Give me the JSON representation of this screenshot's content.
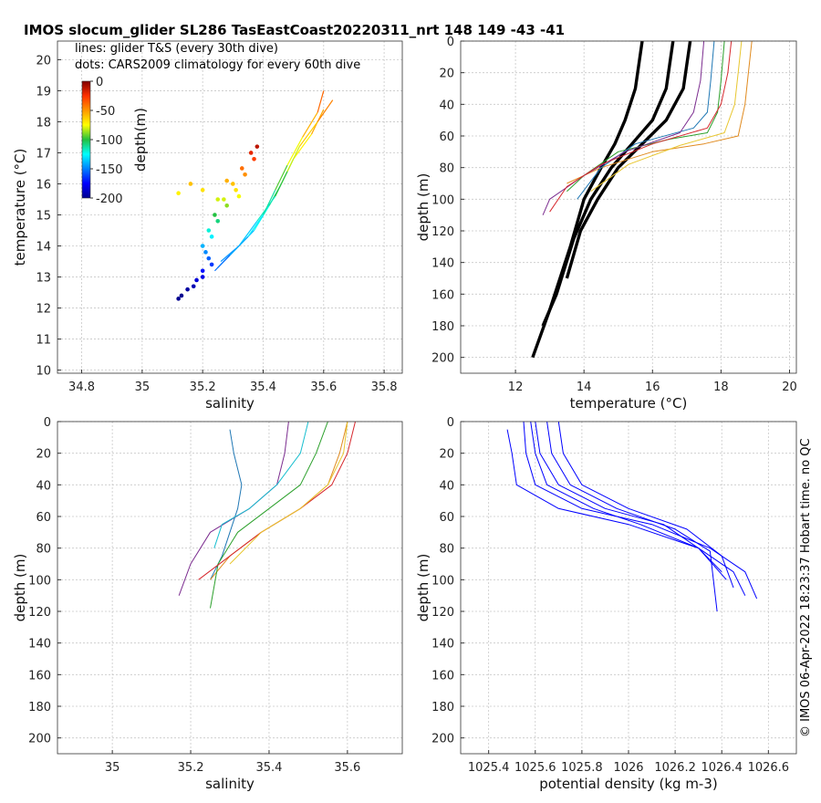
{
  "title": "IMOS slocum_glider SL286 TasEastCoast20220311_nrt 148  149  -43  -41",
  "copyright": "© IMOS 06-Apr-2022 18:23:37 Hobart time. no QC",
  "colors": {
    "glider_density": "#0000ff",
    "climatology_profile": "#000000",
    "grid": "#c8c8c8"
  },
  "chart_data": [
    {
      "id": "ts_diagram",
      "type": "scatter",
      "xlabel": "salinity",
      "ylabel": "temperature (°C)",
      "xlim": [
        34.72,
        35.86
      ],
      "ylim": [
        9.9,
        20.6
      ],
      "xticks": [
        34.8,
        35,
        35.2,
        35.4,
        35.6,
        35.8
      ],
      "xtick_labels": [
        "34.8",
        "35",
        "35.2",
        "35.4",
        "35.6",
        "35.8"
      ],
      "yticks": [
        10,
        11,
        12,
        13,
        14,
        15,
        16,
        17,
        18,
        19,
        20
      ],
      "ytick_labels": [
        "10",
        "11",
        "12",
        "13",
        "14",
        "15",
        "16",
        "17",
        "18",
        "19",
        "20"
      ],
      "grid": true,
      "annotations": [
        "lines: glider T&S (every 30th dive)",
        "dots: CARS2009 climatology for every 60th dive"
      ],
      "colorbar": {
        "label": "depth(m)",
        "ticks": [
          0,
          -50,
          -100,
          -150,
          -200
        ],
        "tick_labels": [
          "0",
          "-50",
          "-100",
          "-150",
          "-200"
        ],
        "range": [
          -200,
          0
        ],
        "colormap": "jet"
      },
      "series": [
        {
          "kind": "glider_ts_lines",
          "points": [
            [
              35.25,
              13.3
            ],
            [
              35.3,
              13.8
            ],
            [
              35.37,
              14.5
            ],
            [
              35.42,
              15.3
            ],
            [
              35.46,
              16.0
            ],
            [
              35.5,
              16.8
            ],
            [
              35.56,
              17.6
            ],
            [
              35.6,
              18.4
            ]
          ]
        },
        {
          "kind": "glider_ts_lines",
          "points": [
            [
              35.26,
              13.5
            ],
            [
              35.32,
              14.0
            ],
            [
              35.38,
              14.8
            ],
            [
              35.44,
              15.6
            ],
            [
              35.48,
              16.4
            ],
            [
              35.52,
              17.2
            ],
            [
              35.58,
              18.0
            ],
            [
              35.63,
              18.7
            ]
          ]
        },
        {
          "kind": "glider_ts_lines",
          "points": [
            [
              35.24,
              13.2
            ],
            [
              35.29,
              13.7
            ],
            [
              35.35,
              14.3
            ],
            [
              35.4,
              15.0
            ],
            [
              35.44,
              15.8
            ],
            [
              35.48,
              16.6
            ],
            [
              35.53,
              17.5
            ],
            [
              35.58,
              18.3
            ],
            [
              35.6,
              19.0
            ]
          ]
        },
        {
          "kind": "climatology_dots",
          "points": [
            [
              35.12,
              12.3
            ],
            [
              35.15,
              12.6
            ],
            [
              35.18,
              12.9
            ],
            [
              35.2,
              13.2
            ],
            [
              35.22,
              13.6
            ],
            [
              35.2,
              14.0
            ],
            [
              35.22,
              14.5
            ],
            [
              35.24,
              15.0
            ],
            [
              35.27,
              15.5
            ],
            [
              35.3,
              16.0
            ],
            [
              35.33,
              16.5
            ],
            [
              35.36,
              17.0
            ],
            [
              35.38,
              17.2
            ]
          ]
        },
        {
          "kind": "climatology_dots",
          "points": [
            [
              35.13,
              12.4
            ],
            [
              35.17,
              12.7
            ],
            [
              35.2,
              13.0
            ],
            [
              35.23,
              13.4
            ],
            [
              35.21,
              13.8
            ],
            [
              35.23,
              14.3
            ],
            [
              35.25,
              14.8
            ],
            [
              35.28,
              15.3
            ],
            [
              35.31,
              15.8
            ],
            [
              35.34,
              16.3
            ],
            [
              35.37,
              16.8
            ]
          ]
        },
        {
          "kind": "climatology_dots",
          "points": [
            [
              35.12,
              15.7
            ],
            [
              35.16,
              16.0
            ],
            [
              35.2,
              15.8
            ],
            [
              35.25,
              15.5
            ],
            [
              35.28,
              16.1
            ],
            [
              35.32,
              15.6
            ]
          ]
        }
      ]
    },
    {
      "id": "temperature_profile",
      "type": "line",
      "xlabel": "temperature (°C)",
      "ylabel": "depth (m)",
      "xlim": [
        10.4,
        20.2
      ],
      "ylim": [
        0,
        210
      ],
      "y_reversed": true,
      "xticks": [
        12,
        14,
        16,
        18,
        20
      ],
      "xtick_labels": [
        "12",
        "14",
        "16",
        "18",
        "20"
      ],
      "yticks": [
        0,
        20,
        40,
        60,
        80,
        100,
        120,
        140,
        160,
        180,
        200
      ],
      "ytick_labels": [
        "0",
        "20",
        "40",
        "60",
        "80",
        "100",
        "120",
        "140",
        "160",
        "180",
        "200"
      ],
      "grid": true,
      "series": [
        {
          "kind": "climatology",
          "color": "#000000",
          "x": [
            15.7,
            15.5,
            15.2,
            14.9,
            14.5,
            14.0,
            13.6,
            13.0,
            12.5
          ],
          "y": [
            0,
            30,
            50,
            65,
            80,
            100,
            130,
            170,
            200
          ]
        },
        {
          "kind": "climatology",
          "color": "#000000",
          "x": [
            16.6,
            16.4,
            16.0,
            15.4,
            14.8,
            14.2,
            13.7,
            13.2,
            12.8
          ],
          "y": [
            0,
            30,
            50,
            65,
            80,
            100,
            125,
            160,
            180
          ]
        },
        {
          "kind": "climatology",
          "color": "#000000",
          "x": [
            17.1,
            16.9,
            16.4,
            15.7,
            15.0,
            14.4,
            13.9,
            13.5
          ],
          "y": [
            0,
            30,
            50,
            65,
            80,
            100,
            120,
            150
          ]
        },
        {
          "kind": "glider",
          "color": "#e08a1e",
          "x": [
            18.9,
            18.8,
            18.7,
            18.5,
            17.5,
            16.0,
            14.5,
            13.5
          ],
          "y": [
            0,
            20,
            40,
            60,
            65,
            70,
            80,
            90
          ]
        },
        {
          "kind": "glider",
          "color": "#2ca02c",
          "x": [
            18.1,
            18.0,
            17.9,
            17.6,
            16.5,
            15.0,
            14.0,
            13.5
          ],
          "y": [
            0,
            25,
            45,
            58,
            62,
            70,
            85,
            95
          ]
        },
        {
          "kind": "glider",
          "color": "#1f77b4",
          "x": [
            17.8,
            17.7,
            17.6,
            17.2,
            15.5,
            14.5,
            13.8
          ],
          "y": [
            0,
            25,
            45,
            55,
            65,
            80,
            100
          ]
        },
        {
          "kind": "glider",
          "color": "#7b2c8f",
          "x": [
            17.5,
            17.4,
            17.2,
            16.8,
            15.2,
            14.0,
            13.0,
            12.8
          ],
          "y": [
            0,
            25,
            45,
            58,
            70,
            85,
            100,
            110
          ]
        },
        {
          "kind": "glider",
          "color": "#d6272d",
          "x": [
            18.3,
            18.2,
            18.0,
            17.6,
            16.0,
            14.5,
            13.5,
            13.0
          ],
          "y": [
            0,
            20,
            40,
            55,
            65,
            78,
            92,
            108
          ]
        },
        {
          "kind": "glider",
          "color": "#e8c62f",
          "x": [
            18.6,
            18.5,
            18.4,
            18.1,
            16.8,
            15.3,
            14.2
          ],
          "y": [
            0,
            20,
            40,
            58,
            66,
            78,
            95
          ]
        }
      ]
    },
    {
      "id": "salinity_profile",
      "type": "line",
      "xlabel": "salinity",
      "ylabel": "depth (m)",
      "xlim": [
        34.86,
        35.74
      ],
      "ylim": [
        0,
        210
      ],
      "y_reversed": true,
      "xticks": [
        35,
        35.2,
        35.4,
        35.6
      ],
      "xtick_labels": [
        "35",
        "35.2",
        "35.4",
        "35.6"
      ],
      "yticks": [
        0,
        20,
        40,
        60,
        80,
        100,
        120,
        140,
        160,
        180,
        200
      ],
      "ytick_labels": [
        "0",
        "20",
        "40",
        "60",
        "80",
        "100",
        "120",
        "140",
        "160",
        "180",
        "200"
      ],
      "grid": true,
      "series": [
        {
          "kind": "glider",
          "color": "#1f77b4",
          "x": [
            35.3,
            35.31,
            35.33,
            35.32,
            35.3,
            35.28,
            35.25
          ],
          "y": [
            5,
            20,
            40,
            55,
            70,
            85,
            100
          ]
        },
        {
          "kind": "glider",
          "color": "#e08a1e",
          "x": [
            35.6,
            35.58,
            35.55,
            35.48,
            35.38,
            35.3,
            35.25
          ],
          "y": [
            0,
            20,
            40,
            55,
            70,
            85,
            100
          ]
        },
        {
          "kind": "glider",
          "color": "#2ca02c",
          "x": [
            35.55,
            35.52,
            35.48,
            35.4,
            35.32,
            35.27,
            35.25
          ],
          "y": [
            0,
            20,
            40,
            55,
            70,
            90,
            118
          ]
        },
        {
          "kind": "glider",
          "color": "#7b2c8f",
          "x": [
            35.45,
            35.44,
            35.42,
            35.35,
            35.25,
            35.2,
            35.17
          ],
          "y": [
            0,
            20,
            40,
            55,
            70,
            90,
            110
          ]
        },
        {
          "kind": "glider",
          "color": "#d6272d",
          "x": [
            35.62,
            35.6,
            35.56,
            35.48,
            35.38,
            35.3,
            35.22
          ],
          "y": [
            0,
            20,
            40,
            55,
            70,
            85,
            100
          ]
        },
        {
          "kind": "glider",
          "color": "#17becf",
          "x": [
            35.5,
            35.48,
            35.42,
            35.35,
            35.28,
            35.26
          ],
          "y": [
            0,
            20,
            40,
            55,
            65,
            80
          ]
        },
        {
          "kind": "glider",
          "color": "#e8c62f",
          "x": [
            35.6,
            35.59,
            35.55,
            35.48,
            35.38,
            35.3
          ],
          "y": [
            0,
            20,
            40,
            55,
            70,
            90
          ]
        }
      ]
    },
    {
      "id": "density_profile",
      "type": "line",
      "xlabel": "potential density (kg m-3)",
      "ylabel": "depth (m)",
      "xlim": [
        1025.28,
        1026.72
      ],
      "ylim": [
        0,
        210
      ],
      "y_reversed": true,
      "xticks": [
        1025.4,
        1025.6,
        1025.8,
        1026,
        1026.2,
        1026.4,
        1026.6
      ],
      "xtick_labels": [
        "1025.4",
        "1025.6",
        "1025.8",
        "1026",
        "1026.2",
        "1026.4",
        "1026.6"
      ],
      "yticks": [
        0,
        20,
        40,
        60,
        80,
        100,
        120,
        140,
        160,
        180,
        200
      ],
      "ytick_labels": [
        "0",
        "20",
        "40",
        "60",
        "80",
        "100",
        "120",
        "140",
        "160",
        "180",
        "200"
      ],
      "grid": true,
      "series": [
        {
          "kind": "glider",
          "color": "#0000ff",
          "x": [
            1025.48,
            1025.5,
            1025.52,
            1025.7,
            1026.0,
            1026.3,
            1026.45,
            1026.5
          ],
          "y": [
            5,
            20,
            40,
            55,
            65,
            80,
            95,
            110
          ]
        },
        {
          "kind": "glider",
          "color": "#0000ff",
          "x": [
            1025.55,
            1025.56,
            1025.6,
            1025.8,
            1026.1,
            1026.35,
            1026.5,
            1026.55
          ],
          "y": [
            0,
            20,
            40,
            55,
            65,
            80,
            95,
            112
          ]
        },
        {
          "kind": "glider",
          "color": "#0000ff",
          "x": [
            1025.6,
            1025.62,
            1025.7,
            1025.9,
            1026.15,
            1026.3,
            1026.4
          ],
          "y": [
            0,
            20,
            40,
            55,
            65,
            80,
            95
          ]
        },
        {
          "kind": "glider",
          "color": "#0000ff",
          "x": [
            1025.65,
            1025.67,
            1025.75,
            1025.95,
            1026.2,
            1026.35,
            1026.38
          ],
          "y": [
            0,
            20,
            40,
            55,
            68,
            82,
            120
          ]
        },
        {
          "kind": "glider",
          "color": "#0000ff",
          "x": [
            1025.7,
            1025.72,
            1025.8,
            1026.0,
            1026.25,
            1026.4,
            1026.45
          ],
          "y": [
            0,
            20,
            40,
            55,
            68,
            85,
            105
          ]
        },
        {
          "kind": "glider",
          "color": "#0000ff",
          "x": [
            1025.58,
            1025.6,
            1025.65,
            1025.85,
            1026.05,
            1026.3,
            1026.42
          ],
          "y": [
            0,
            20,
            40,
            55,
            65,
            80,
            100
          ]
        }
      ]
    }
  ]
}
